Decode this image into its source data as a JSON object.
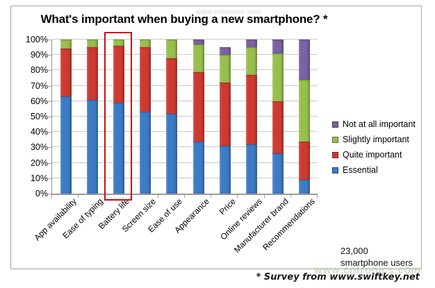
{
  "title": "What's important when buying a new smartphone? *",
  "watermarks": {
    "top": "www.cntronics.com",
    "bottom": "www.cntronics.com"
  },
  "source_note": "* Survey from www.swiftkey.net",
  "annotation": {
    "line1": "23,000",
    "line2": "smartphone users"
  },
  "colors": {
    "essential": "#3d7cc4",
    "quite_important": "#ce3a31",
    "slightly_important": "#98bf4d",
    "not_at_all_important": "#7b61a5",
    "gridline": "#c9c9c9",
    "axis": "#9a9a9a",
    "frame": "#a6a6a6",
    "highlight": "#cb0e0e",
    "watermark_green": "#b2c9a4"
  },
  "chart_data": {
    "type": "bar",
    "variant": "stacked-100-percent",
    "title": "What's important when buying a new smartphone? *",
    "categories": [
      "App availability",
      "Ease of typing",
      "Battery life",
      "Screen size",
      "Ease of use",
      "Appearance",
      "Price",
      "Online reviews",
      "Manufacturer brand",
      "Recommendations"
    ],
    "series": [
      {
        "name": "Essential",
        "color": "#3d7cc4",
        "values": [
          63,
          61,
          59,
          53,
          52,
          34,
          31,
          32,
          26,
          9
        ]
      },
      {
        "name": "Quite important",
        "color": "#ce3a31",
        "values": [
          31,
          34,
          37,
          42,
          36,
          45,
          41,
          45,
          34,
          25
        ]
      },
      {
        "name": "Slightly important",
        "color": "#98bf4d",
        "values": [
          6,
          5,
          4,
          5,
          12,
          18,
          18,
          18,
          31,
          40
        ]
      },
      {
        "name": "Not at all important",
        "color": "#7b61a5",
        "values": [
          0,
          0,
          0,
          0,
          0,
          3,
          5,
          5,
          9,
          26
        ]
      }
    ],
    "legend_order": [
      "Not at all important",
      "Slightly important",
      "Quite important",
      "Essential"
    ],
    "legend_position": "right",
    "y_ticks": [
      "0%",
      "10%",
      "20%",
      "30%",
      "40%",
      "50%",
      "60%",
      "70%",
      "80%",
      "90%",
      "100%"
    ],
    "ylim": [
      0,
      100
    ],
    "grid": true,
    "x_label_rotation": -45,
    "highlighted_category": "Battery life"
  }
}
